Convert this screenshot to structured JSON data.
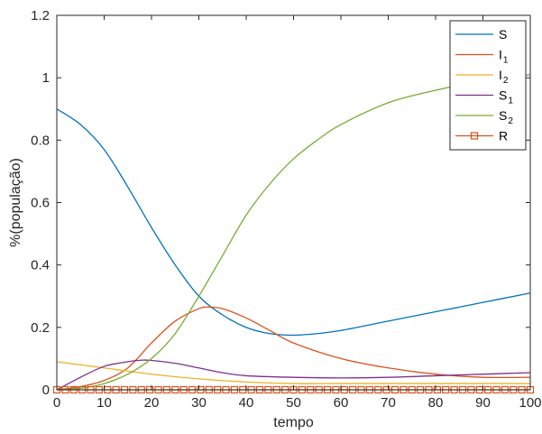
{
  "chart_data": {
    "type": "line",
    "title": "",
    "xlabel": "tempo",
    "ylabel": "%(população)",
    "xlim": [
      0,
      100
    ],
    "ylim": [
      0,
      1.2
    ],
    "xticks": [
      0,
      10,
      20,
      30,
      40,
      50,
      60,
      70,
      80,
      90,
      100
    ],
    "yticks": [
      0,
      0.2,
      0.4,
      0.6,
      0.8,
      1,
      1.2
    ],
    "xtick_labels": [
      "0",
      "10",
      "20",
      "30",
      "40",
      "50",
      "60",
      "70",
      "80",
      "90",
      "100"
    ],
    "ytick_labels": [
      "0",
      "0.2",
      "0.4",
      "0.6",
      "0.8",
      "1",
      "1.2"
    ],
    "grid": false,
    "legend_position": "top-right",
    "series": [
      {
        "name": "S",
        "name_base": "S",
        "name_sub": "",
        "color": "#0072BD",
        "marker": "none",
        "x": [
          0,
          5,
          10,
          15,
          20,
          25,
          30,
          35,
          40,
          45,
          50,
          55,
          60,
          70,
          80,
          90,
          100
        ],
        "y": [
          0.9,
          0.85,
          0.77,
          0.65,
          0.52,
          0.4,
          0.3,
          0.24,
          0.2,
          0.18,
          0.175,
          0.18,
          0.19,
          0.22,
          0.25,
          0.28,
          0.31
        ]
      },
      {
        "name": "I1",
        "name_base": "I",
        "name_sub": "1",
        "color": "#D95319",
        "marker": "none",
        "x": [
          0,
          5,
          10,
          15,
          20,
          25,
          30,
          32,
          35,
          40,
          45,
          50,
          60,
          70,
          80,
          90,
          100
        ],
        "y": [
          0.0,
          0.01,
          0.03,
          0.07,
          0.15,
          0.22,
          0.26,
          0.265,
          0.26,
          0.23,
          0.19,
          0.15,
          0.1,
          0.07,
          0.05,
          0.04,
          0.04
        ]
      },
      {
        "name": "I2",
        "name_base": "I",
        "name_sub": "2",
        "color": "#EDB120",
        "marker": "none",
        "x": [
          0,
          10,
          20,
          30,
          40,
          50,
          60,
          70,
          80,
          90,
          100
        ],
        "y": [
          0.09,
          0.07,
          0.05,
          0.035,
          0.025,
          0.02,
          0.02,
          0.02,
          0.02,
          0.02,
          0.02
        ]
      },
      {
        "name": "S1",
        "name_base": "S",
        "name_sub": "1",
        "color": "#7E2F8E",
        "marker": "none",
        "x": [
          0,
          5,
          10,
          15,
          18,
          20,
          25,
          30,
          35,
          40,
          50,
          60,
          70,
          80,
          90,
          100
        ],
        "y": [
          0.0,
          0.04,
          0.075,
          0.09,
          0.095,
          0.094,
          0.085,
          0.07,
          0.055,
          0.045,
          0.04,
          0.038,
          0.04,
          0.045,
          0.05,
          0.055
        ]
      },
      {
        "name": "S2",
        "name_base": "S",
        "name_sub": "2",
        "color": "#77AC30",
        "marker": "none",
        "x": [
          0,
          5,
          10,
          15,
          20,
          25,
          30,
          35,
          40,
          45,
          50,
          55,
          60,
          70,
          80,
          90,
          100
        ],
        "y": [
          0.0,
          0.005,
          0.02,
          0.05,
          0.1,
          0.18,
          0.3,
          0.43,
          0.56,
          0.66,
          0.74,
          0.8,
          0.85,
          0.92,
          0.96,
          0.99,
          1.01
        ]
      },
      {
        "name": "R",
        "name_base": "R",
        "name_sub": "",
        "color": "#D95319",
        "marker": "square",
        "x": [
          0,
          100
        ],
        "y": [
          0,
          0
        ],
        "marker_count": 57
      }
    ]
  }
}
